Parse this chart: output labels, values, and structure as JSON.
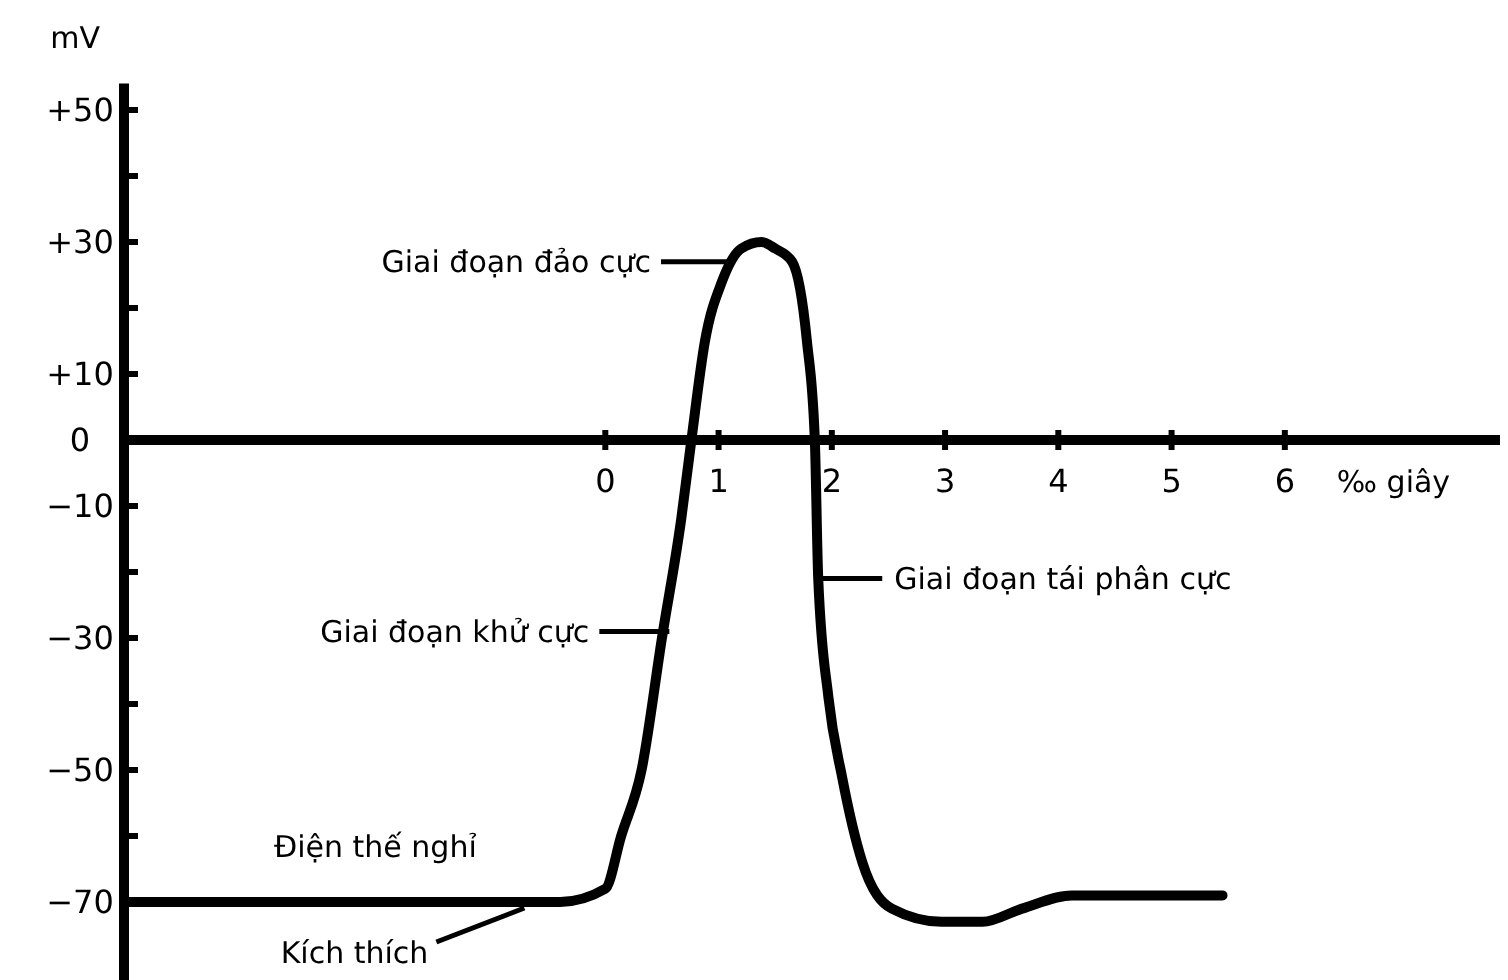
{
  "chart_data": {
    "type": "line",
    "xlabel": "‰ giây",
    "ylabel": "mV",
    "xlim": [
      -4.25,
      7.9
    ],
    "xticks": [
      0,
      1,
      2,
      3,
      4,
      5,
      6
    ],
    "ylim": [
      -82,
      54
    ],
    "yticks": [
      {
        "value": 50,
        "label": "+50"
      },
      {
        "value": 40,
        "label": null
      },
      {
        "value": 30,
        "label": "+30"
      },
      {
        "value": 20,
        "label": null
      },
      {
        "value": 10,
        "label": "+10"
      },
      0,
      {
        "value": -10,
        "label": "−10"
      },
      {
        "value": -20,
        "label": null
      },
      {
        "value": -30,
        "label": "−30"
      },
      {
        "value": -40,
        "label": null
      },
      {
        "value": -50,
        "label": "−50"
      },
      {
        "value": -60,
        "label": null
      },
      {
        "value": -70,
        "label": "−70"
      }
    ],
    "grid": false,
    "marker": "none",
    "line_style": "solid",
    "series": [
      {
        "color": "#000000",
        "x": [
          -4.25,
          -0.4,
          0.0,
          0.14,
          0.32,
          0.5,
          0.67,
          0.76,
          0.88,
          1.03,
          1.2,
          1.38,
          1.5,
          1.65,
          1.78,
          1.85,
          1.88,
          1.97,
          2.09,
          2.27,
          2.53,
          2.97,
          3.33,
          3.68,
          4.12,
          5.45
        ],
        "values": [
          -70,
          -70,
          -68,
          -60,
          -50,
          -30,
          -12,
          0,
          15,
          24,
          29,
          30,
          29,
          27,
          15,
          0,
          -21,
          -39,
          -51,
          -64,
          -71,
          -73,
          -73,
          -71,
          -69,
          -69
        ]
      }
    ],
    "annotations": [
      {
        "text": "Giai đoạn đảo cực",
        "x": 1.11,
        "y": 27
      },
      {
        "text": "Giai đoạn khử cực",
        "x": 0.53,
        "y": -29
      },
      {
        "text": "Giai đoạn tái phân cực",
        "x": 1.88,
        "y": -21
      },
      {
        "text": "Điện thế nghỉ",
        "x": -2.03,
        "y": -70
      },
      {
        "text": "Kích thích",
        "x": -0.75,
        "y": -70
      }
    ]
  }
}
